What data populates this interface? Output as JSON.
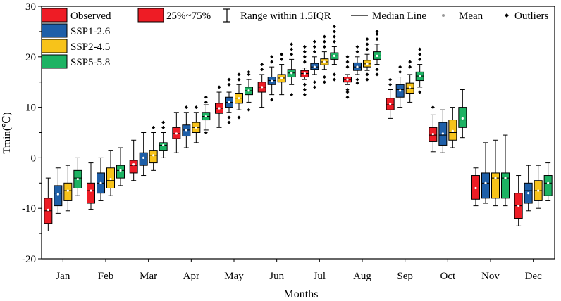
{
  "chart_data": {
    "type": "boxplot",
    "title": "",
    "xlabel": "Months",
    "ylabel": "Tmin(℃)",
    "ylim": [
      -20,
      30
    ],
    "yticks": [
      -20,
      -10,
      0,
      10,
      20,
      30
    ],
    "categories": [
      "Jan",
      "Feb",
      "Mar",
      "Apr",
      "May",
      "Jun",
      "Jul",
      "Aug",
      "Sep",
      "Oct",
      "Nov",
      "Dec"
    ],
    "series": [
      {
        "name": "Observed",
        "color": "#ee1c25",
        "boxes": [
          {
            "whisker_low": -14.5,
            "q1": -13,
            "median": -10.5,
            "q3": -8,
            "whisker_high": -4,
            "mean": -10.3,
            "outliers": []
          },
          {
            "whisker_low": -10.2,
            "q1": -9,
            "median": -6.5,
            "q3": -5,
            "whisker_high": -1,
            "mean": -6.5,
            "outliers": []
          },
          {
            "whisker_low": -4.5,
            "q1": -3,
            "median": -1.5,
            "q3": -0.5,
            "whisker_high": 3.5,
            "mean": -1.3,
            "outliers": []
          },
          {
            "whisker_low": 1,
            "q1": 3.8,
            "median": 4.8,
            "q3": 6,
            "whisker_high": 9,
            "mean": 4.8,
            "outliers": []
          },
          {
            "whisker_low": 6,
            "q1": 8.8,
            "median": 9.8,
            "q3": 10.8,
            "whisker_high": 13,
            "mean": 9.8,
            "outliers": [
              14
            ]
          },
          {
            "whisker_low": 10,
            "q1": 13,
            "median": 14,
            "q3": 15,
            "whisker_high": 16.5,
            "mean": 14,
            "outliers": [
              17.5,
              18.5
            ]
          },
          {
            "whisker_low": 15.5,
            "q1": 16,
            "median": 16.7,
            "q3": 17.3,
            "whisker_high": 17.8,
            "mean": 16.7,
            "outliers": [
              12.5,
              13.5,
              14.5,
              19,
              20,
              21,
              22
            ]
          },
          {
            "whisker_low": 14.5,
            "q1": 15,
            "median": 15.5,
            "q3": 16,
            "whisker_high": 16.5,
            "mean": 15.5,
            "outliers": [
              12,
              13,
              13.5,
              18,
              19,
              20
            ]
          },
          {
            "whisker_low": 7.8,
            "q1": 9.5,
            "median": 10.5,
            "q3": 11.8,
            "whisker_high": 13.5,
            "mean": 10.7,
            "outliers": [
              14.5,
              15.5
            ]
          },
          {
            "whisker_low": 1.2,
            "q1": 3.2,
            "median": 4.5,
            "q3": 6,
            "whisker_high": 8.5,
            "mean": 4.7,
            "outliers": [
              10
            ]
          },
          {
            "whisker_low": -9.5,
            "q1": -8.2,
            "median": -6,
            "q3": -3.5,
            "whisker_high": -2,
            "mean": -6,
            "outliers": []
          },
          {
            "whisker_low": -13.5,
            "q1": -12,
            "median": -9.5,
            "q3": -7,
            "whisker_high": -3.5,
            "mean": -9.5,
            "outliers": []
          }
        ]
      },
      {
        "name": "SSP1-2.6",
        "color": "#1e5fa8",
        "boxes": [
          {
            "whisker_low": -11,
            "q1": -9.5,
            "median": -7,
            "q3": -5.5,
            "whisker_high": -2,
            "mean": -7.2,
            "outliers": []
          },
          {
            "whisker_low": -8.5,
            "q1": -7,
            "median": -5,
            "q3": -3,
            "whisker_high": 0,
            "mean": -5,
            "outliers": []
          },
          {
            "whisker_low": -3.5,
            "q1": -1.5,
            "median": 0,
            "q3": 1,
            "whisker_high": 5,
            "mean": 0,
            "outliers": []
          },
          {
            "whisker_low": 2,
            "q1": 4.3,
            "median": 5.5,
            "q3": 6.5,
            "whisker_high": 9,
            "mean": 5.5,
            "outliers": [
              10
            ]
          },
          {
            "whisker_low": 9,
            "q1": 10,
            "median": 11,
            "q3": 12,
            "whisker_high": 13,
            "mean": 11,
            "outliers": [
              7,
              8,
              14.5,
              15.5
            ]
          },
          {
            "whisker_low": 12.5,
            "q1": 14.5,
            "median": 15.3,
            "q3": 16,
            "whisker_high": 18,
            "mean": 15.2,
            "outliers": [
              11.5,
              19,
              20
            ]
          },
          {
            "whisker_low": 16.5,
            "q1": 17.5,
            "median": 18,
            "q3": 18.7,
            "whisker_high": 20,
            "mean": 18,
            "outliers": [
              14,
              15,
              21,
              22,
              23
            ]
          },
          {
            "whisker_low": 16.5,
            "q1": 17.3,
            "median": 18,
            "q3": 18.8,
            "whisker_high": 20,
            "mean": 18,
            "outliers": [
              14.8,
              15.5,
              21,
              22
            ]
          },
          {
            "whisker_low": 10,
            "q1": 12,
            "median": 13.5,
            "q3": 14.5,
            "whisker_high": 16,
            "mean": 13.3,
            "outliers": [
              17,
              18
            ]
          },
          {
            "whisker_low": 1,
            "q1": 2.5,
            "median": 4.5,
            "q3": 7,
            "whisker_high": 9.5,
            "mean": 4.8,
            "outliers": []
          },
          {
            "whisker_low": -9,
            "q1": -8,
            "median": -5,
            "q3": -3,
            "whisker_high": 3,
            "mean": -5,
            "outliers": []
          },
          {
            "whisker_low": -10.5,
            "q1": -9,
            "median": -6.5,
            "q3": -5,
            "whisker_high": -1.5,
            "mean": -7,
            "outliers": []
          }
        ]
      },
      {
        "name": "SSP2-4.5",
        "color": "#f7c31a",
        "boxes": [
          {
            "whisker_low": -10.5,
            "q1": -8.5,
            "median": -6.5,
            "q3": -5,
            "whisker_high": -1.5,
            "mean": -6.5,
            "outliers": []
          },
          {
            "whisker_low": -7.5,
            "q1": -6,
            "median": -4.5,
            "q3": -2,
            "whisker_high": 1.5,
            "mean": -4.2,
            "outliers": []
          },
          {
            "whisker_low": -2.5,
            "q1": -1,
            "median": 0.5,
            "q3": 1.5,
            "whisker_high": 5,
            "mean": 0.5,
            "outliers": [
              6
            ]
          },
          {
            "whisker_low": 3,
            "q1": 5,
            "median": 6,
            "q3": 7,
            "whisker_high": 9,
            "mean": 6,
            "outliers": [
              10
            ]
          },
          {
            "whisker_low": 9.5,
            "q1": 10.8,
            "median": 11.8,
            "q3": 12.8,
            "whisker_high": 14.5,
            "mean": 11.8,
            "outliers": [
              8,
              15.5,
              16.5
            ]
          },
          {
            "whisker_low": 12.5,
            "q1": 15,
            "median": 15.8,
            "q3": 16.5,
            "whisker_high": 18.5,
            "mean": 15.8,
            "outliers": [
              19.5,
              20.5
            ]
          },
          {
            "whisker_low": 17.5,
            "q1": 18.4,
            "median": 19,
            "q3": 19.6,
            "whisker_high": 21,
            "mean": 19,
            "outliers": [
              15,
              16,
              22,
              23,
              24
            ]
          },
          {
            "whisker_low": 17.3,
            "q1": 18,
            "median": 18.6,
            "q3": 19.3,
            "whisker_high": 20.5,
            "mean": 18.6,
            "outliers": [
              15.5,
              16.5,
              21.5,
              22.5,
              23.5
            ]
          },
          {
            "whisker_low": 11,
            "q1": 12.8,
            "median": 13.8,
            "q3": 14.8,
            "whisker_high": 16.5,
            "mean": 14,
            "outliers": [
              18,
              19
            ]
          },
          {
            "whisker_low": 2,
            "q1": 3.5,
            "median": 5,
            "q3": 7.5,
            "whisker_high": 10,
            "mean": 5.3,
            "outliers": []
          },
          {
            "whisker_low": -9.5,
            "q1": -8,
            "median": -4,
            "q3": -3,
            "whisker_high": 3.5,
            "mean": -4,
            "outliers": []
          },
          {
            "whisker_low": -10,
            "q1": -8.5,
            "median": -6.5,
            "q3": -4.5,
            "whisker_high": -1.5,
            "mean": -6.5,
            "outliers": []
          }
        ]
      },
      {
        "name": "SSP5-5.8",
        "color": "#1db363",
        "boxes": [
          {
            "whisker_low": -7.5,
            "q1": -6,
            "median": -4,
            "q3": -2.5,
            "whisker_high": 0,
            "mean": -4.2,
            "outliers": []
          },
          {
            "whisker_low": -5.5,
            "q1": -4,
            "median": -2.5,
            "q3": -1.5,
            "whisker_high": 2,
            "mean": -2.5,
            "outliers": []
          },
          {
            "whisker_low": 0,
            "q1": 1.5,
            "median": 2.5,
            "q3": 3,
            "whisker_high": 5,
            "mean": 2.5,
            "outliers": [
              6,
              7
            ]
          },
          {
            "whisker_low": 5.5,
            "q1": 7.5,
            "median": 8.2,
            "q3": 9,
            "whisker_high": 10.5,
            "mean": 8.2,
            "outliers": [
              5,
              11,
              12
            ]
          },
          {
            "whisker_low": 11,
            "q1": 12.5,
            "median": 13.3,
            "q3": 14,
            "whisker_high": 15.5,
            "mean": 13.3,
            "outliers": [
              9.5,
              16.5,
              17
            ]
          },
          {
            "whisker_low": 14.5,
            "q1": 16,
            "median": 16.8,
            "q3": 17.5,
            "whisker_high": 19.5,
            "mean": 16.8,
            "outliers": [
              12.5,
              20.5,
              21.5,
              22.5
            ]
          },
          {
            "whisker_low": 18.5,
            "q1": 19.5,
            "median": 20.2,
            "q3": 20.8,
            "whisker_high": 22,
            "mean": 20.2,
            "outliers": [
              15.5,
              16.5,
              23,
              24,
              25,
              26
            ]
          },
          {
            "whisker_low": 18.5,
            "q1": 19.5,
            "median": 20.2,
            "q3": 21,
            "whisker_high": 22.5,
            "mean": 20.2,
            "outliers": [
              16.5,
              17.5,
              23.5,
              24.5,
              25
            ]
          },
          {
            "whisker_low": 14,
            "q1": 15.3,
            "median": 16.2,
            "q3": 17,
            "whisker_high": 18.5,
            "mean": 16.2,
            "outliers": [
              13,
              19.5,
              20.5,
              21.5
            ]
          },
          {
            "whisker_low": 4,
            "q1": 6,
            "median": 7.5,
            "q3": 10,
            "whisker_high": 13.5,
            "mean": 7.8,
            "outliers": []
          },
          {
            "whisker_low": -9.5,
            "q1": -8,
            "median": -4,
            "q3": -3,
            "whisker_high": 4.5,
            "mean": -4,
            "outliers": []
          },
          {
            "whisker_low": -8.5,
            "q1": -7.5,
            "median": -5,
            "q3": -3.5,
            "whisker_high": -1,
            "mean": -5,
            "outliers": []
          }
        ]
      }
    ],
    "legend": {
      "placement": "top",
      "entries": [
        "Observed",
        "SSP1-2.6",
        "SSP2-4.5",
        "SSP5-5.8"
      ],
      "box_label": "25%~75%",
      "range_label": "Range within 1.5IQR",
      "median_label": "Median Line",
      "mean_label": "Mean",
      "outlier_label": "Outliers"
    }
  }
}
